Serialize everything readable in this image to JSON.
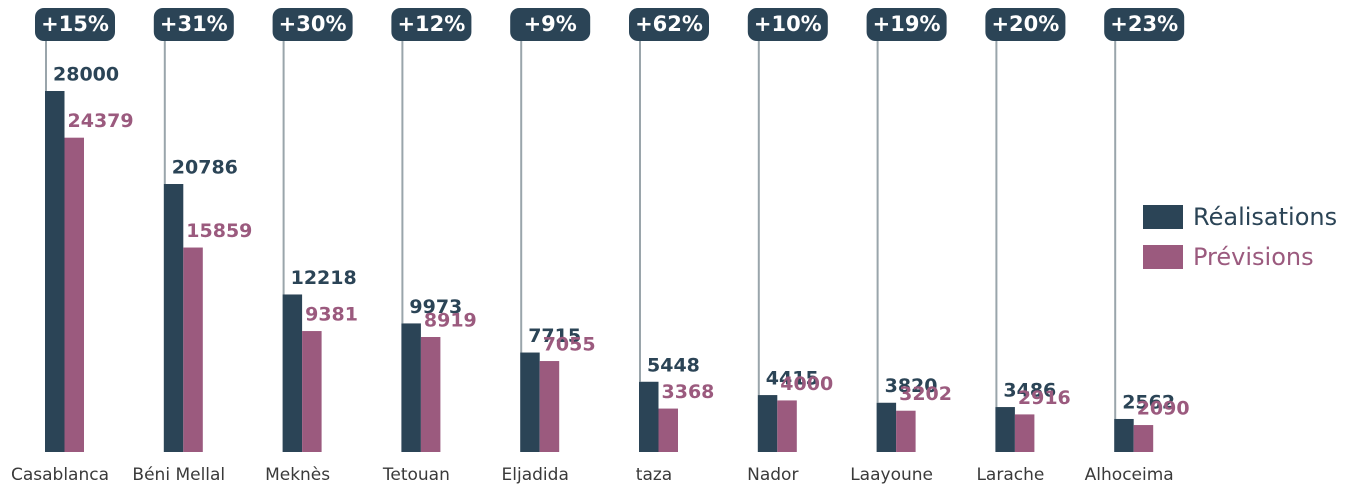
{
  "chart_data": {
    "type": "bar",
    "categories": [
      "Casablanca",
      "Béni Mellal",
      "Meknès",
      "Tetouan",
      "Eljadida",
      "taza",
      "Nador",
      "Laayoune",
      "Larache",
      "Alhoceima"
    ],
    "series": [
      {
        "name": "Réalisations",
        "color": "#2b4456",
        "values": [
          28000,
          20786,
          12218,
          9973,
          7715,
          5448,
          4415,
          3820,
          3486,
          2562
        ]
      },
      {
        "name": "Prévisions",
        "color": "#9b5a7e",
        "values": [
          24379,
          15859,
          9381,
          8919,
          7055,
          3368,
          4000,
          3202,
          2916,
          2090
        ]
      }
    ],
    "annotations": [
      "+15%",
      "+31%",
      "+30%",
      "+12%",
      "+9%",
      "+62%",
      "+10%",
      "+19%",
      "+20%",
      "+23%"
    ],
    "legend": "right"
  }
}
